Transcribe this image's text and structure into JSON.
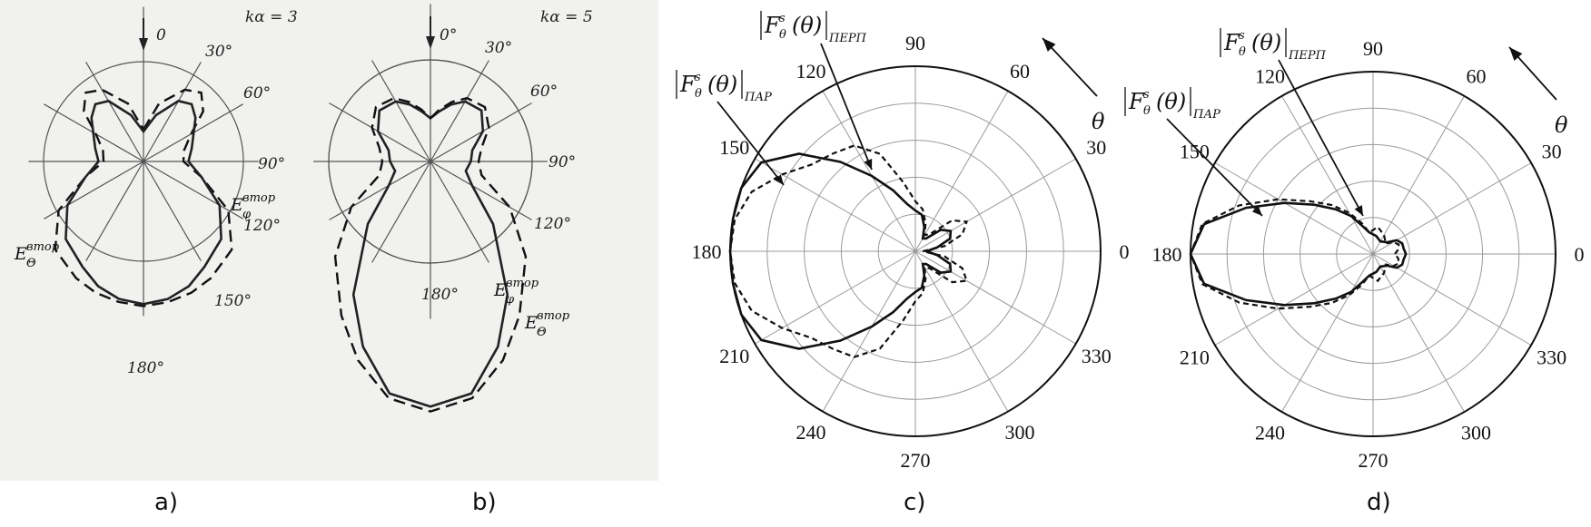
{
  "panel_labels": [
    "a)",
    "b)",
    "c)",
    "d)"
  ],
  "chart_data": [
    {
      "panel": "a)",
      "type": "line",
      "projection": "polar",
      "angle_convention": "clockwise from top",
      "header": "kα = 3",
      "angle_tick_labels": [
        "0",
        "30°",
        "60°",
        "90°",
        "120°",
        "150°",
        "180°"
      ],
      "series": [
        {
          "name": "E_Θ^втор",
          "name_base": "E",
          "name_sub": "Θ",
          "name_sup": "втор",
          "style": "dashed",
          "theta_deg": [
            0,
            15,
            30,
            40,
            50,
            60,
            75,
            90,
            105,
            120,
            135,
            150,
            160,
            170,
            180
          ],
          "r": [
            0.32,
            0.6,
            0.83,
            0.9,
            0.78,
            0.55,
            0.42,
            0.4,
            0.6,
            0.98,
            1.25,
            1.35,
            1.4,
            1.43,
            1.45
          ]
        },
        {
          "name": "E_φ^втор",
          "name_base": "E",
          "name_sub": "φ",
          "name_sup": "втор",
          "style": "solid",
          "theta_deg": [
            0,
            15,
            30,
            40,
            50,
            60,
            75,
            90,
            105,
            120,
            135,
            150,
            160,
            170,
            180
          ],
          "r": [
            0.3,
            0.48,
            0.7,
            0.75,
            0.68,
            0.58,
            0.5,
            0.45,
            0.6,
            0.88,
            1.1,
            1.22,
            1.33,
            1.4,
            1.43
          ]
        }
      ]
    },
    {
      "panel": "b)",
      "type": "line",
      "projection": "polar",
      "angle_convention": "clockwise from top",
      "header": "kα = 5",
      "angle_tick_labels": [
        "0°",
        "30°",
        "60°",
        "90°",
        "120°",
        "180°"
      ],
      "series": [
        {
          "name": "E_φ^втор",
          "name_base": "E",
          "name_sub": "φ",
          "name_sup": "втор",
          "style": "solid",
          "theta_deg": [
            0,
            10,
            20,
            30,
            45,
            60,
            75,
            90,
            105,
            120,
            135,
            150,
            160,
            170,
            180
          ],
          "r": [
            0.45,
            0.53,
            0.63,
            0.72,
            0.75,
            0.63,
            0.45,
            0.42,
            0.38,
            0.5,
            0.92,
            1.6,
            2.05,
            2.45,
            2.55
          ]
        },
        {
          "name": "E_Θ^втор",
          "name_base": "E",
          "name_sub": "Θ",
          "name_sup": "втор",
          "style": "dashed",
          "theta_deg": [
            0,
            10,
            20,
            30,
            45,
            60,
            75,
            90,
            105,
            120,
            135,
            150,
            160,
            170,
            180
          ],
          "r": [
            0.45,
            0.55,
            0.66,
            0.76,
            0.8,
            0.7,
            0.55,
            0.5,
            0.55,
            0.95,
            1.4,
            1.85,
            2.2,
            2.5,
            2.6
          ]
        }
      ]
    },
    {
      "panel": "c)",
      "type": "line",
      "projection": "polar",
      "angle_convention": "counterclockwise from right",
      "rlim": [
        0,
        1
      ],
      "angle_tick_labels": [
        "0",
        "30",
        "60",
        "90",
        "120",
        "150",
        "180",
        "210",
        "240",
        "270",
        "300",
        "330"
      ],
      "axis_symbol": "θ",
      "series": [
        {
          "name": "|F_θ^s(θ)|_ПАР",
          "name_sub": "ПАР",
          "style": "solid",
          "theta_deg": [
            0,
            10,
            20,
            30,
            40,
            50,
            60,
            70,
            80,
            90,
            100,
            110,
            120,
            130,
            140,
            150,
            160,
            170,
            180
          ],
          "r": [
            0.06,
            0.12,
            0.2,
            0.22,
            0.18,
            0.09,
            0.08,
            0.14,
            0.2,
            0.22,
            0.26,
            0.35,
            0.47,
            0.63,
            0.82,
            0.96,
            1.0,
            1.0,
            1.0
          ]
        },
        {
          "name": "|F_θ^s(θ)|_ПЕРП",
          "name_sub": "ПЕРП",
          "style": "dashed",
          "theta_deg": [
            0,
            10,
            20,
            30,
            40,
            50,
            60,
            70,
            80,
            90,
            100,
            110,
            120,
            130,
            140,
            150,
            160,
            170,
            180
          ],
          "r": [
            0.04,
            0.16,
            0.27,
            0.32,
            0.26,
            0.12,
            0.1,
            0.16,
            0.23,
            0.27,
            0.38,
            0.56,
            0.66,
            0.69,
            0.73,
            0.83,
            0.94,
            0.99,
            1.0
          ]
        }
      ]
    },
    {
      "panel": "d)",
      "type": "line",
      "projection": "polar",
      "angle_convention": "counterclockwise from right",
      "rlim": [
        0,
        1
      ],
      "angle_tick_labels": [
        "0",
        "30",
        "60",
        "90",
        "120",
        "150",
        "180",
        "210",
        "240",
        "270",
        "300",
        "330"
      ],
      "axis_symbol": "θ",
      "series": [
        {
          "name": "|F_θ^s(θ)|_ПАР",
          "name_sub": "ПАР",
          "style": "solid",
          "theta_deg": [
            0,
            10,
            20,
            30,
            40,
            60,
            80,
            100,
            110,
            120,
            130,
            140,
            150,
            160,
            170,
            180
          ],
          "r": [
            0.18,
            0.17,
            0.17,
            0.15,
            0.1,
            0.08,
            0.1,
            0.12,
            0.16,
            0.24,
            0.32,
            0.42,
            0.56,
            0.74,
            0.94,
            1.0
          ]
        },
        {
          "name": "|F_θ^s(θ)|_ПЕРП",
          "name_sub": "ПЕРП",
          "style": "dashed",
          "theta_deg": [
            0,
            10,
            20,
            30,
            40,
            60,
            80,
            100,
            110,
            120,
            130,
            140,
            150,
            160,
            170,
            180
          ],
          "r": [
            0.12,
            0.14,
            0.15,
            0.13,
            0.09,
            0.12,
            0.15,
            0.12,
            0.18,
            0.26,
            0.35,
            0.45,
            0.6,
            0.78,
            0.95,
            1.0
          ]
        }
      ]
    }
  ]
}
